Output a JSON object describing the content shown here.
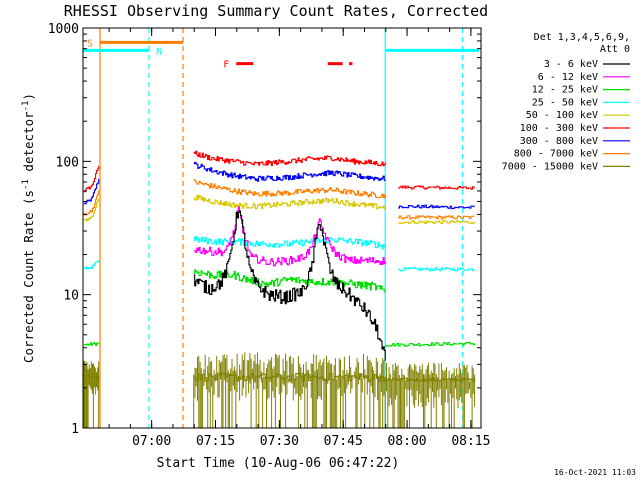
{
  "chart_data": {
    "type": "line",
    "title": "RHESSI Observing Summary Count Rates, Corrected",
    "xlabel": "Start Time (10-Aug-06 06:47:22)",
    "ylabel": "Corrected Count Rate (s⁻¹ detector⁻¹)",
    "yscale": "log",
    "xlim": [
      -3.5,
      90
    ],
    "ylim": [
      1,
      1000
    ],
    "x_units": "minutes after 06:47:22",
    "x_ticks": [
      {
        "value": 12.63,
        "label": "07:00"
      },
      {
        "value": 27.63,
        "label": "07:15"
      },
      {
        "value": 42.63,
        "label": "07:30"
      },
      {
        "value": 57.63,
        "label": "07:45"
      },
      {
        "value": 72.63,
        "label": "08:00"
      },
      {
        "value": 87.63,
        "label": "08:15"
      }
    ],
    "y_ticks": [
      {
        "value": 1,
        "label": "1"
      },
      {
        "value": 10,
        "label": "10"
      },
      {
        "value": 100,
        "label": "100"
      },
      {
        "value": 1000,
        "label": "1000"
      }
    ],
    "legend_header": [
      "Det 1,3,4,5,6,9,",
      "Att 0"
    ],
    "series": [
      {
        "name": "3 - 6 keV",
        "color": "#000000",
        "noise": 0.05,
        "pts": [
          [
            22.5,
            13
          ],
          [
            26,
            11
          ],
          [
            29,
            12.5
          ],
          [
            30.5,
            16
          ],
          [
            32,
            30
          ],
          [
            33,
            46
          ],
          [
            34,
            30
          ],
          [
            35.5,
            16
          ],
          [
            37,
            12
          ],
          [
            40,
            10
          ],
          [
            44,
            9.5
          ],
          [
            48,
            10.5
          ],
          [
            50,
            15
          ],
          [
            52,
            37
          ],
          [
            53,
            25
          ],
          [
            54.5,
            15
          ],
          [
            56,
            12
          ],
          [
            59,
            10
          ],
          [
            63,
            7.5
          ],
          [
            65.5,
            5.5
          ],
          [
            67.5,
            3.2
          ]
        ]
      },
      {
        "name": "6 - 12 keV",
        "color": "#ff00ff",
        "noise": 0.03,
        "pts": [
          [
            22.5,
            22
          ],
          [
            27,
            21
          ],
          [
            30,
            21
          ],
          [
            32,
            30
          ],
          [
            33,
            44
          ],
          [
            34,
            30
          ],
          [
            36,
            19
          ],
          [
            40,
            17.5
          ],
          [
            45,
            18
          ],
          [
            48,
            19
          ],
          [
            50,
            22
          ],
          [
            52,
            35
          ],
          [
            54,
            25
          ],
          [
            56,
            20
          ],
          [
            59,
            18
          ],
          [
            63,
            18
          ],
          [
            67.5,
            18
          ]
        ]
      },
      {
        "name": "12 - 25 keV",
        "color": "#00e000",
        "noise": 0.03,
        "pts": [
          [
            22.5,
            15
          ],
          [
            27,
            14
          ],
          [
            32,
            14
          ],
          [
            35,
            13
          ],
          [
            40,
            12
          ],
          [
            45,
            13
          ],
          [
            50,
            12.5
          ],
          [
            55,
            12.5
          ],
          [
            60,
            12
          ],
          [
            65,
            11.5
          ],
          [
            67.5,
            10.5
          ]
        ]
      },
      {
        "name": "25 - 50 keV",
        "color": "#00ffff",
        "noise": 0.025,
        "pts": [
          [
            22.5,
            26
          ],
          [
            28,
            25
          ],
          [
            33,
            25
          ],
          [
            38,
            24
          ],
          [
            45,
            24
          ],
          [
            50,
            25
          ],
          [
            55,
            26
          ],
          [
            60,
            25
          ],
          [
            65,
            24
          ],
          [
            67.5,
            23
          ]
        ]
      },
      {
        "name": "50 - 100 keV",
        "color": "#d8c800",
        "noise": 0.02,
        "pts": [
          [
            22.5,
            54
          ],
          [
            27,
            50
          ],
          [
            32,
            47
          ],
          [
            37,
            46
          ],
          [
            45,
            48
          ],
          [
            50,
            50
          ],
          [
            55,
            51
          ],
          [
            60,
            48
          ],
          [
            65,
            46
          ],
          [
            67.5,
            45
          ]
        ]
      },
      {
        "name": "100 - 300 keV",
        "color": "#ff0000",
        "noise": 0.02,
        "pts": [
          [
            22.5,
            115
          ],
          [
            27,
            105
          ],
          [
            32,
            100
          ],
          [
            37,
            95
          ],
          [
            45,
            100
          ],
          [
            50,
            104
          ],
          [
            55,
            106
          ],
          [
            60,
            100
          ],
          [
            65,
            97
          ],
          [
            67.5,
            95
          ]
        ]
      },
      {
        "name": "300 - 800 keV",
        "color": "#0000ff",
        "noise": 0.02,
        "pts": [
          [
            22.5,
            95
          ],
          [
            27,
            85
          ],
          [
            32,
            78
          ],
          [
            37,
            74
          ],
          [
            45,
            76
          ],
          [
            50,
            80
          ],
          [
            55,
            82
          ],
          [
            60,
            78
          ],
          [
            65,
            75
          ],
          [
            67.5,
            74
          ]
        ]
      },
      {
        "name": "800 - 7000 keV",
        "color": "#ff8000",
        "noise": 0.02,
        "pts": [
          [
            22.5,
            70
          ],
          [
            27,
            65
          ],
          [
            32,
            60
          ],
          [
            37,
            57
          ],
          [
            45,
            58
          ],
          [
            50,
            60
          ],
          [
            55,
            61
          ],
          [
            60,
            58
          ],
          [
            65,
            56
          ],
          [
            67.5,
            55
          ]
        ]
      },
      {
        "name": "7000 - 15000 keV",
        "color": "#808000",
        "noise": 0.0,
        "pts": [
          [
            22.5,
            2.5
          ],
          [
            67.5,
            2.5
          ]
        ]
      }
    ],
    "segments_early": [
      {
        "color": "#0000ff",
        "pts": [
          [
            -3.3,
            48
          ],
          [
            -1.5,
            52
          ],
          [
            -0.8,
            60
          ],
          [
            0.3,
            75
          ]
        ]
      },
      {
        "color": "#ff0000",
        "pts": [
          [
            -3.3,
            60
          ],
          [
            -1.5,
            65
          ],
          [
            -0.8,
            75
          ],
          [
            0.3,
            95
          ]
        ]
      },
      {
        "color": "#ff8000",
        "pts": [
          [
            -3.3,
            40
          ],
          [
            -1.5,
            42
          ],
          [
            -0.8,
            48
          ],
          [
            0.3,
            62
          ]
        ]
      },
      {
        "color": "#d8c800",
        "pts": [
          [
            -3.3,
            36
          ],
          [
            -1.5,
            38
          ],
          [
            -0.8,
            43
          ],
          [
            0.3,
            55
          ]
        ]
      },
      {
        "color": "#00ffff",
        "pts": [
          [
            -3.3,
            16
          ],
          [
            -1.5,
            16
          ],
          [
            -0.8,
            17
          ],
          [
            0.3,
            18
          ]
        ]
      },
      {
        "color": "#00e000",
        "pts": [
          [
            -3.3,
            4.2
          ],
          [
            0.3,
            4.3
          ]
        ]
      },
      {
        "color": "#808000",
        "pts": [
          [
            -3.3,
            2.4
          ],
          [
            0.3,
            2.4
          ]
        ]
      }
    ],
    "segments_late": [
      {
        "color": "#ff0000",
        "pts": [
          [
            70.5,
            64
          ],
          [
            88.5,
            63
          ]
        ]
      },
      {
        "color": "#0000ff",
        "pts": [
          [
            70.5,
            46
          ],
          [
            88.5,
            45
          ]
        ]
      },
      {
        "color": "#ff8000",
        "pts": [
          [
            70.5,
            38
          ],
          [
            88.5,
            38
          ]
        ]
      },
      {
        "color": "#d8c800",
        "pts": [
          [
            70.5,
            35
          ],
          [
            88.5,
            35
          ]
        ]
      },
      {
        "color": "#00ffff",
        "pts": [
          [
            70.5,
            15.5
          ],
          [
            88.5,
            15.5
          ]
        ]
      },
      {
        "color": "#00e000",
        "pts": [
          [
            67.5,
            4.2
          ],
          [
            88.5,
            4.3
          ]
        ]
      },
      {
        "color": "#808000",
        "pts": [
          [
            67.5,
            2.3
          ],
          [
            88.5,
            2.3
          ]
        ]
      }
    ],
    "vertical_lines": [
      {
        "x": 0.5,
        "color": "#ff8000",
        "style": "solid"
      },
      {
        "x": 12.0,
        "color": "#00ffff",
        "style": "dashed"
      },
      {
        "x": 20.0,
        "color": "#ff8000",
        "style": "dashed"
      },
      {
        "x": 67.5,
        "color": "#00ffff",
        "style": "solid"
      },
      {
        "x": 85.7,
        "color": "#00ffff",
        "style": "dashed"
      }
    ],
    "bars": [
      {
        "label": "S",
        "color": "#ff8000",
        "y": 780,
        "ranges": [
          [
            0.5,
            20.0
          ]
        ]
      },
      {
        "label": "N",
        "color": "#00ffff",
        "y": 680,
        "ranges": [
          [
            -3.5,
            12.0
          ],
          [
            67.5,
            89.5
          ]
        ]
      },
      {
        "label": "F",
        "color": "#ff0000",
        "y": 540,
        "ranges": [
          [
            32.5,
            36.5
          ],
          [
            54.0,
            57.5
          ],
          [
            59.0,
            59.8
          ]
        ]
      }
    ],
    "timestamp": "16-Oct-2021 11:03"
  }
}
